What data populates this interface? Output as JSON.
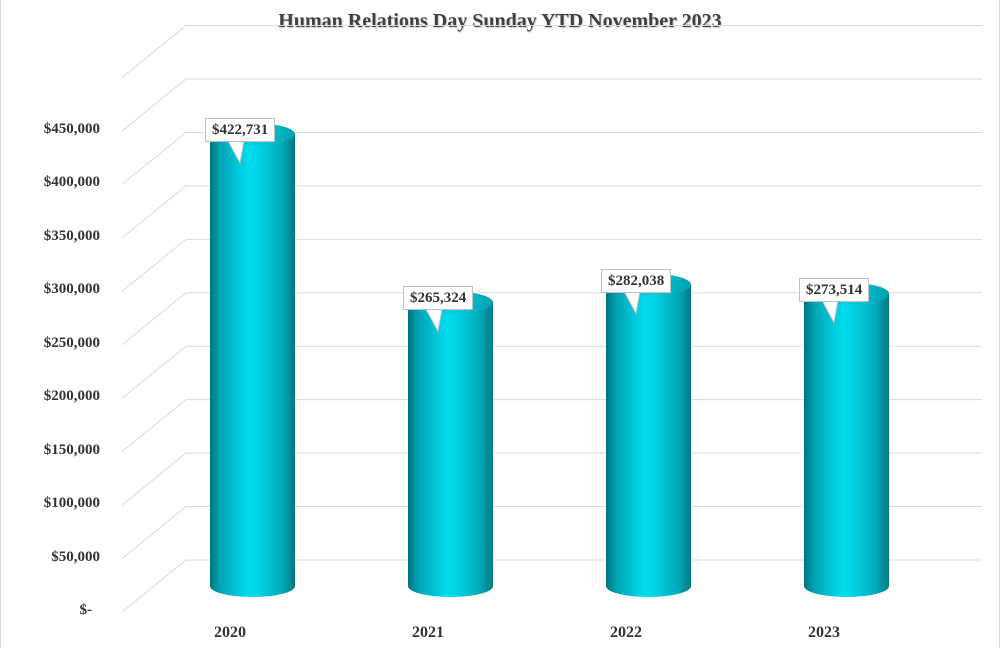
{
  "chart_data": {
    "type": "bar",
    "style": "3d-cylinder",
    "title": "Human Relations Day Sunday YTD November 2023",
    "xlabel": "",
    "ylabel": "",
    "categories": [
      "2020",
      "2021",
      "2022",
      "2023"
    ],
    "values": [
      422731,
      265324,
      282038,
      273514
    ],
    "data_labels": [
      "$422,731",
      "$265,324",
      "$282,038",
      "$273,514"
    ],
    "y_ticks": [
      "$-",
      "$50,000",
      "$100,000",
      "$150,000",
      "$200,000",
      "$250,000",
      "$300,000",
      "$350,000",
      "$400,000",
      "$450,000"
    ],
    "y_tick_values": [
      0,
      50000,
      100000,
      150000,
      200000,
      250000,
      300000,
      350000,
      400000,
      450000
    ],
    "ylim": [
      0,
      450000
    ],
    "grid": true,
    "legend": "none",
    "colors": {
      "bar": "#00BCD0",
      "bar_light": "#00DCEB",
      "bar_dark": "#00828F",
      "grid": "#d9d9d9",
      "text": "#333333"
    }
  }
}
